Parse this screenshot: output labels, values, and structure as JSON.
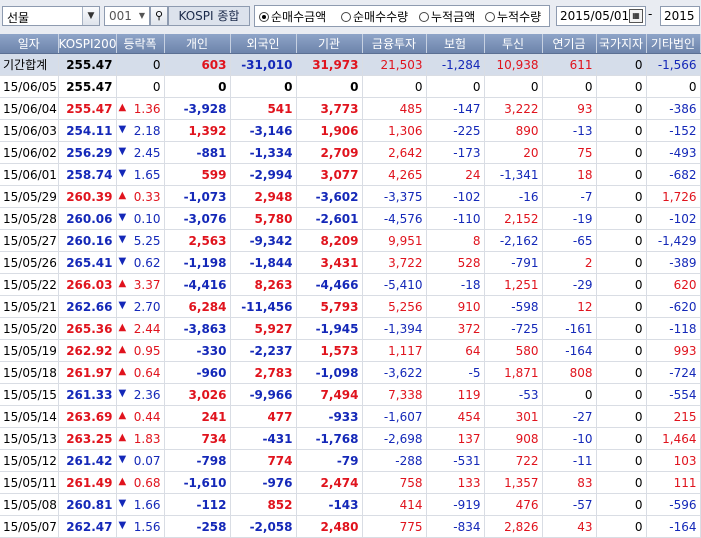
{
  "toolbar": {
    "market_select": "선물",
    "code": "001",
    "search_icon": "magnifier-icon",
    "index_name": "KOSPI 종합",
    "radios": [
      {
        "label": "순매수금액",
        "selected": true
      },
      {
        "label": "순매수수량",
        "selected": false
      },
      {
        "label": "누적금액",
        "selected": false
      },
      {
        "label": "누적수량",
        "selected": false
      }
    ],
    "date_from": "2015/05/01",
    "date_sep": "-",
    "date_to": "2015"
  },
  "columns": [
    "일자",
    "KOSPI200",
    "등락폭",
    "개인",
    "외국인",
    "기관",
    "금융투자",
    "보험",
    "투신",
    "연기금",
    "국가지자",
    "기타법인"
  ],
  "colors": {
    "up": "#e0131d",
    "down": "#1428b8",
    "header": "#7b91b8",
    "summary_row": "#d5ddea"
  },
  "rows": [
    {
      "date": "기간합계",
      "kospi": "255.47",
      "dir": "",
      "chg": "0",
      "ind": "603",
      "frn": "-31,010",
      "inst": "31,973",
      "fin": "21,503",
      "ins": "-1,284",
      "trust": "10,938",
      "pen": "611",
      "gov": "0",
      "etc": "-1,566",
      "summary": true
    },
    {
      "date": "15/06/05",
      "kospi": "255.47",
      "dir": "",
      "chg": "0",
      "ind": "0",
      "frn": "0",
      "inst": "0",
      "fin": "0",
      "ins": "0",
      "trust": "0",
      "pen": "0",
      "gov": "0",
      "etc": "0"
    },
    {
      "date": "15/06/04",
      "kospi": "255.47",
      "dir": "up",
      "chg": "1.36",
      "ind": "-3,928",
      "frn": "541",
      "inst": "3,773",
      "fin": "485",
      "ins": "-147",
      "trust": "3,222",
      "pen": "93",
      "gov": "0",
      "etc": "-386"
    },
    {
      "date": "15/06/03",
      "kospi": "254.11",
      "dir": "dn",
      "chg": "2.18",
      "ind": "1,392",
      "frn": "-3,146",
      "inst": "1,906",
      "fin": "1,306",
      "ins": "-225",
      "trust": "890",
      "pen": "-13",
      "gov": "0",
      "etc": "-152"
    },
    {
      "date": "15/06/02",
      "kospi": "256.29",
      "dir": "dn",
      "chg": "2.45",
      "ind": "-881",
      "frn": "-1,334",
      "inst": "2,709",
      "fin": "2,642",
      "ins": "-173",
      "trust": "20",
      "pen": "75",
      "gov": "0",
      "etc": "-493"
    },
    {
      "date": "15/06/01",
      "kospi": "258.74",
      "dir": "dn",
      "chg": "1.65",
      "ind": "599",
      "frn": "-2,994",
      "inst": "3,077",
      "fin": "4,265",
      "ins": "24",
      "trust": "-1,341",
      "pen": "18",
      "gov": "0",
      "etc": "-682"
    },
    {
      "date": "15/05/29",
      "kospi": "260.39",
      "dir": "up",
      "chg": "0.33",
      "ind": "-1,073",
      "frn": "2,948",
      "inst": "-3,602",
      "fin": "-3,375",
      "ins": "-102",
      "trust": "-16",
      "pen": "-7",
      "gov": "0",
      "etc": "1,726"
    },
    {
      "date": "15/05/28",
      "kospi": "260.06",
      "dir": "dn",
      "chg": "0.10",
      "ind": "-3,076",
      "frn": "5,780",
      "inst": "-2,601",
      "fin": "-4,576",
      "ins": "-110",
      "trust": "2,152",
      "pen": "-19",
      "gov": "0",
      "etc": "-102"
    },
    {
      "date": "15/05/27",
      "kospi": "260.16",
      "dir": "dn",
      "chg": "5.25",
      "ind": "2,563",
      "frn": "-9,342",
      "inst": "8,209",
      "fin": "9,951",
      "ins": "8",
      "trust": "-2,162",
      "pen": "-65",
      "gov": "0",
      "etc": "-1,429"
    },
    {
      "date": "15/05/26",
      "kospi": "265.41",
      "dir": "dn",
      "chg": "0.62",
      "ind": "-1,198",
      "frn": "-1,844",
      "inst": "3,431",
      "fin": "3,722",
      "ins": "528",
      "trust": "-791",
      "pen": "2",
      "gov": "0",
      "etc": "-389"
    },
    {
      "date": "15/05/22",
      "kospi": "266.03",
      "dir": "up",
      "chg": "3.37",
      "ind": "-4,416",
      "frn": "8,263",
      "inst": "-4,466",
      "fin": "-5,410",
      "ins": "-18",
      "trust": "1,251",
      "pen": "-29",
      "gov": "0",
      "etc": "620"
    },
    {
      "date": "15/05/21",
      "kospi": "262.66",
      "dir": "dn",
      "chg": "2.70",
      "ind": "6,284",
      "frn": "-11,456",
      "inst": "5,793",
      "fin": "5,256",
      "ins": "910",
      "trust": "-598",
      "pen": "12",
      "gov": "0",
      "etc": "-620"
    },
    {
      "date": "15/05/20",
      "kospi": "265.36",
      "dir": "up",
      "chg": "2.44",
      "ind": "-3,863",
      "frn": "5,927",
      "inst": "-1,945",
      "fin": "-1,394",
      "ins": "372",
      "trust": "-725",
      "pen": "-161",
      "gov": "0",
      "etc": "-118"
    },
    {
      "date": "15/05/19",
      "kospi": "262.92",
      "dir": "up",
      "chg": "0.95",
      "ind": "-330",
      "frn": "-2,237",
      "inst": "1,573",
      "fin": "1,117",
      "ins": "64",
      "trust": "580",
      "pen": "-164",
      "gov": "0",
      "etc": "993"
    },
    {
      "date": "15/05/18",
      "kospi": "261.97",
      "dir": "up",
      "chg": "0.64",
      "ind": "-960",
      "frn": "2,783",
      "inst": "-1,098",
      "fin": "-3,622",
      "ins": "-5",
      "trust": "1,871",
      "pen": "808",
      "gov": "0",
      "etc": "-724"
    },
    {
      "date": "15/05/15",
      "kospi": "261.33",
      "dir": "dn",
      "chg": "2.36",
      "ind": "3,026",
      "frn": "-9,966",
      "inst": "7,494",
      "fin": "7,338",
      "ins": "119",
      "trust": "-53",
      "pen": "0",
      "gov": "0",
      "etc": "-554"
    },
    {
      "date": "15/05/14",
      "kospi": "263.69",
      "dir": "up",
      "chg": "0.44",
      "ind": "241",
      "frn": "477",
      "inst": "-933",
      "fin": "-1,607",
      "ins": "454",
      "trust": "301",
      "pen": "-27",
      "gov": "0",
      "etc": "215"
    },
    {
      "date": "15/05/13",
      "kospi": "263.25",
      "dir": "up",
      "chg": "1.83",
      "ind": "734",
      "frn": "-431",
      "inst": "-1,768",
      "fin": "-2,698",
      "ins": "137",
      "trust": "908",
      "pen": "-10",
      "gov": "0",
      "etc": "1,464"
    },
    {
      "date": "15/05/12",
      "kospi": "261.42",
      "dir": "dn",
      "chg": "0.07",
      "ind": "-798",
      "frn": "774",
      "inst": "-79",
      "fin": "-288",
      "ins": "-531",
      "trust": "722",
      "pen": "-11",
      "gov": "0",
      "etc": "103"
    },
    {
      "date": "15/05/11",
      "kospi": "261.49",
      "dir": "up",
      "chg": "0.68",
      "ind": "-1,610",
      "frn": "-976",
      "inst": "2,474",
      "fin": "758",
      "ins": "133",
      "trust": "1,357",
      "pen": "83",
      "gov": "0",
      "etc": "111"
    },
    {
      "date": "15/05/08",
      "kospi": "260.81",
      "dir": "dn",
      "chg": "1.66",
      "ind": "-112",
      "frn": "852",
      "inst": "-143",
      "fin": "414",
      "ins": "-919",
      "trust": "476",
      "pen": "-57",
      "gov": "0",
      "etc": "-596"
    },
    {
      "date": "15/05/07",
      "kospi": "262.47",
      "dir": "dn",
      "chg": "1.56",
      "ind": "-258",
      "frn": "-2,058",
      "inst": "2,480",
      "fin": "775",
      "ins": "-834",
      "trust": "2,826",
      "pen": "43",
      "gov": "0",
      "etc": "-164"
    }
  ]
}
